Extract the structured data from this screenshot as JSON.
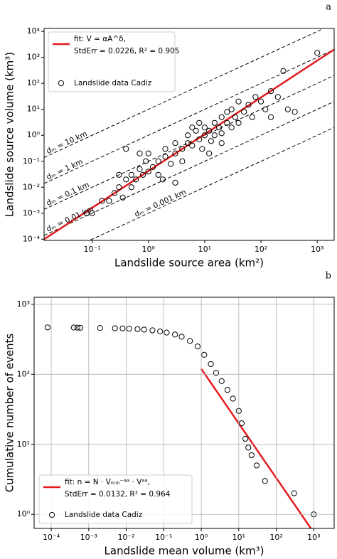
{
  "chart_data": [
    {
      "type": "scatter",
      "panel": "a",
      "xlog": true,
      "ylog": true,
      "x_label": "Landslide source area (km²)",
      "y_label": "Landslide source volume (km³)",
      "xlim": [
        0.014,
        2000
      ],
      "ylim": [
        9e-05,
        13000
      ],
      "xticks": [
        {
          "value": 0.1,
          "label": "10⁻¹"
        },
        {
          "value": 1,
          "label": "10⁰"
        },
        {
          "value": 10,
          "label": "10¹"
        },
        {
          "value": 100,
          "label": "10²"
        },
        {
          "value": 1000,
          "label": "10³"
        }
      ],
      "yticks": [
        {
          "value": 0.0001,
          "label": "10⁻⁴"
        },
        {
          "value": 0.001,
          "label": "10⁻³"
        },
        {
          "value": 0.01,
          "label": "10⁻²"
        },
        {
          "value": 0.1,
          "label": "10⁻¹"
        },
        {
          "value": 1,
          "label": "10⁰"
        },
        {
          "value": 10,
          "label": "10¹"
        },
        {
          "value": 100,
          "label": "10²"
        },
        {
          "value": 1000,
          "label": "10³"
        },
        {
          "value": 10000,
          "label": "10⁴"
        }
      ],
      "reference_lines": [
        {
          "label": "dₘ = 10 km",
          "depth": 10
        },
        {
          "label": "dₘ = 1 km",
          "depth": 1
        },
        {
          "label": "dₘ = 0.1 km",
          "depth": 0.1
        },
        {
          "label": "dₘ = 0.01 km",
          "depth": 0.01
        },
        {
          "label": "dₘ = 0.001 km",
          "depth": 0.001
        }
      ],
      "fit_stats": "StdErr = 0.0226, R² = 0.905",
      "series": [
        {
          "name": "fit: V = αA^δ,",
          "type": "line",
          "color": "#e41a1c",
          "x": [
            0.014,
            2000
          ],
          "values": [
            0.0001,
            2000
          ]
        },
        {
          "name": "Landslide data Cadiz",
          "type": "scatter",
          "color": "#000000",
          "x": [
            0.08,
            0.1,
            0.15,
            0.2,
            0.25,
            0.3,
            0.35,
            0.4,
            0.5,
            0.5,
            0.6,
            0.7,
            0.8,
            0.9,
            1,
            1,
            1.2,
            1.5,
            1.5,
            2,
            2,
            2.5,
            3,
            3,
            4,
            4,
            5,
            5,
            6,
            7,
            8,
            9,
            10,
            10,
            12,
            13,
            15,
            15,
            18,
            20,
            20,
            25,
            25,
            30,
            30,
            35,
            40,
            40,
            50,
            60,
            70,
            80,
            100,
            120,
            150,
            200,
            250,
            300,
            400,
            1000,
            0.3,
            0.7,
            1.8,
            3,
            6,
            8,
            12,
            20,
            0.4,
            150
          ],
          "values": [
            0.001,
            0.001,
            0.003,
            0.003,
            0.006,
            0.01,
            0.004,
            0.02,
            0.01,
            0.03,
            0.02,
            0.05,
            0.03,
            0.1,
            0.04,
            0.2,
            0.06,
            0.1,
            0.03,
            0.15,
            0.3,
            0.08,
            0.2,
            0.5,
            0.3,
            0.1,
            0.5,
            1,
            0.4,
            1.5,
            0.7,
            0.3,
            1,
            2,
            1.5,
            0.6,
            3,
            1,
            2,
            5,
            1.2,
            3,
            8,
            2,
            10,
            5,
            20,
            3,
            8,
            15,
            5,
            30,
            20,
            10,
            50,
            30,
            300,
            10,
            8,
            1500,
            0.03,
            0.2,
            0.02,
            0.015,
            2,
            3,
            0.2,
            0.5,
            0.3,
            5
          ]
        }
      ]
    },
    {
      "type": "scatter",
      "panel": "b",
      "xlog": true,
      "ylog": true,
      "x_label": "Landslide mean volume (km³)",
      "y_label": "Cumulative number of events",
      "xlim": [
        3.5e-05,
        3500
      ],
      "ylim": [
        0.63,
        1260
      ],
      "xticks": [
        {
          "value": 0.0001,
          "label": "10⁻⁴"
        },
        {
          "value": 0.001,
          "label": "10⁻³"
        },
        {
          "value": 0.01,
          "label": "10⁻²"
        },
        {
          "value": 0.1,
          "label": "10⁻¹"
        },
        {
          "value": 1,
          "label": "10⁰"
        },
        {
          "value": 10,
          "label": "10¹"
        },
        {
          "value": 100,
          "label": "10²"
        },
        {
          "value": 1000,
          "label": "10³"
        }
      ],
      "yticks": [
        {
          "value": 1,
          "label": "10⁰"
        },
        {
          "value": 10,
          "label": "10¹"
        },
        {
          "value": 100,
          "label": "10²"
        },
        {
          "value": 1000,
          "label": "10³"
        }
      ],
      "grid": true,
      "fit_stats": "StdErr = 0.0132, R² = 0.964",
      "series": [
        {
          "name": "fit: n = N · Vₘᵢₙ⁻ᵃᵃ · Vᵃᵃ,",
          "type": "line",
          "color": "#e41a1c",
          "x": [
            1,
            1000
          ],
          "values": [
            120,
            0.55
          ]
        },
        {
          "name": "Landslide data Cadiz",
          "type": "scatter",
          "color": "#000000",
          "x": [
            8e-05,
            0.0004,
            0.0005,
            0.0006,
            0.002,
            0.005,
            0.008,
            0.012,
            0.02,
            0.03,
            0.05,
            0.08,
            0.12,
            0.2,
            0.3,
            0.5,
            0.8,
            1.2,
            1.8,
            2.5,
            3.5,
            5,
            7,
            10,
            12,
            15,
            18,
            22,
            30,
            50,
            300,
            1000
          ],
          "values": [
            468,
            466,
            464,
            462,
            458,
            455,
            452,
            448,
            442,
            435,
            425,
            410,
            395,
            370,
            345,
            300,
            250,
            190,
            140,
            105,
            80,
            60,
            45,
            30,
            20,
            12,
            9,
            7,
            5,
            3,
            2,
            1
          ]
        }
      ]
    }
  ]
}
